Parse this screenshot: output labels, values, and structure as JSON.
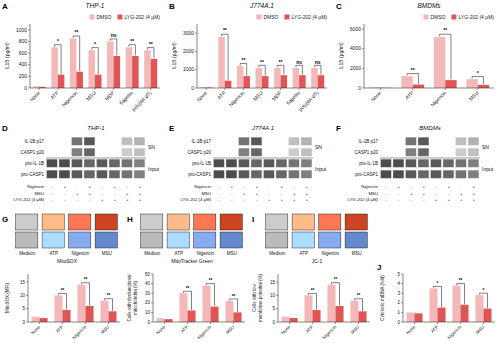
{
  "chart_data": [
    {
      "type": "bar",
      "panel_label": "A",
      "title": "THP-1",
      "ylabel": "IL1B (pg/ml)",
      "categories": [
        "None",
        "ATP",
        "Nigericin",
        "MSU",
        "MDP",
        "flagellin",
        "poly(dA:dT)"
      ],
      "series": [
        {
          "name": "DMSO",
          "color": "#f4b8b8",
          "values": [
            30,
            700,
            850,
            650,
            800,
            700,
            650
          ]
        },
        {
          "name": "LYG-202 (4 μM)",
          "color": "#e05555",
          "values": [
            20,
            230,
            280,
            230,
            550,
            550,
            500
          ]
        }
      ],
      "stars": [
        null,
        "*",
        "**",
        "*",
        "ns",
        "**",
        "**"
      ],
      "ylim": [
        0,
        1100
      ],
      "yticks": [
        0,
        200,
        400,
        600,
        800,
        1000
      ],
      "legend": "upper right"
    },
    {
      "type": "bar",
      "panel_label": "B",
      "title": "J774A.1",
      "ylabel": "IL1B (pg/ml)",
      "categories": [
        "None",
        "ATP",
        "Nigericin",
        "MSU",
        "MDP",
        "flagellin",
        "poly(dA:dT)"
      ],
      "series": [
        {
          "name": "DMSO",
          "color": "#f4b8b8",
          "values": [
            50,
            2800,
            1200,
            1100,
            1100,
            1100,
            1100
          ]
        },
        {
          "name": "LYG-202 (4 μM)",
          "color": "#e05555",
          "values": [
            30,
            400,
            650,
            650,
            700,
            700,
            700
          ]
        }
      ],
      "stars": [
        null,
        "**",
        "**",
        "**",
        "**",
        "ns",
        "ns"
      ],
      "ylim": [
        0,
        3500
      ],
      "yticks": [
        0,
        1000,
        2000,
        3000
      ],
      "legend": "upper right"
    },
    {
      "type": "bar",
      "panel_label": "C",
      "title": "BMDMs",
      "ylabel": "IL1B (pg/ml)",
      "categories": [
        "None",
        "ATP",
        "Nigericin",
        "MSU"
      ],
      "series": [
        {
          "name": "DMSO",
          "color": "#f4b8b8",
          "values": [
            80,
            1200,
            5200,
            900
          ]
        },
        {
          "name": "LYG-202 (4 μM)",
          "color": "#e05555",
          "values": [
            30,
            350,
            800,
            320
          ]
        }
      ],
      "stars": [
        null,
        "**",
        "**",
        "*"
      ],
      "ylim": [
        0,
        6500
      ],
      "yticks": [
        0,
        2000,
        4000,
        6000
      ],
      "legend": "upper right"
    },
    {
      "type": "blot",
      "panel_label": "D",
      "title": "THP-1",
      "rows": [
        "IL-1B p17",
        "CASP1 p20",
        "pro-IL-1B",
        "pro-CASP1"
      ],
      "cells": [
        [
          0.0,
          0.0,
          0.55,
          0.65,
          0.0,
          0.0,
          0.25,
          0.3
        ],
        [
          0.0,
          0.0,
          0.5,
          0.6,
          0.0,
          0.0,
          0.2,
          0.25
        ],
        [
          0.7,
          0.7,
          0.65,
          0.6,
          0.65,
          0.6,
          0.55,
          0.5
        ],
        [
          0.7,
          0.7,
          0.65,
          0.6,
          0.65,
          0.6,
          0.55,
          0.5
        ]
      ],
      "groups": [
        {
          "name": "SN",
          "rows": 2
        },
        {
          "name": "Input",
          "rows": 2
        }
      ],
      "lane_labels": [
        {
          "name": "Nigericin",
          "values": [
            "-",
            "+",
            "-",
            "+",
            "-",
            "+",
            "-",
            "+"
          ]
        },
        {
          "name": "MSU",
          "values": [
            "-",
            "-",
            "+",
            "+",
            "-",
            "-",
            "+",
            "+"
          ]
        },
        {
          "name": "LYG-202 (4 μM)",
          "values": [
            "-",
            "-",
            "-",
            "-",
            "+",
            "+",
            "+",
            "+"
          ]
        }
      ]
    },
    {
      "type": "blot",
      "panel_label": "E",
      "title": "J774A.1",
      "rows": [
        "IL-1B p17",
        "CASP1 p20",
        "pro-IL-1B",
        "pro-CASP1"
      ],
      "cells": [
        [
          0.0,
          0.0,
          0.55,
          0.65,
          0.0,
          0.0,
          0.25,
          0.3
        ],
        [
          0.0,
          0.0,
          0.5,
          0.6,
          0.0,
          0.0,
          0.2,
          0.25
        ],
        [
          0.7,
          0.7,
          0.65,
          0.6,
          0.65,
          0.6,
          0.55,
          0.5
        ],
        [
          0.7,
          0.7,
          0.65,
          0.6,
          0.65,
          0.6,
          0.55,
          0.5
        ]
      ],
      "groups": [
        {
          "name": "SN",
          "rows": 2
        },
        {
          "name": "Input",
          "rows": 2
        }
      ],
      "lane_labels": [
        {
          "name": "Nigericin",
          "values": [
            "-",
            "+",
            "-",
            "+",
            "-",
            "+",
            "-",
            "+"
          ]
        },
        {
          "name": "MSU",
          "values": [
            "-",
            "-",
            "+",
            "+",
            "-",
            "-",
            "+",
            "+"
          ]
        },
        {
          "name": "LYG-202 (4 μM)",
          "values": [
            "-",
            "-",
            "-",
            "-",
            "+",
            "+",
            "+",
            "+"
          ]
        }
      ]
    },
    {
      "type": "blot",
      "panel_label": "F",
      "title": "BMDMs",
      "rows": [
        "IL-1B p17",
        "CASP1 p20",
        "pro-IL-1B",
        "pro-CASP1"
      ],
      "cells": [
        [
          0.0,
          0.0,
          0.55,
          0.65,
          0.0,
          0.0,
          0.25,
          0.3
        ],
        [
          0.0,
          0.0,
          0.5,
          0.6,
          0.0,
          0.0,
          0.2,
          0.25
        ],
        [
          0.7,
          0.7,
          0.65,
          0.6,
          0.65,
          0.6,
          0.55,
          0.5
        ],
        [
          0.7,
          0.7,
          0.65,
          0.6,
          0.65,
          0.6,
          0.55,
          0.5
        ]
      ],
      "groups": [
        {
          "name": "SN",
          "rows": 2
        },
        {
          "name": "Input",
          "rows": 2
        }
      ],
      "lane_labels": [
        {
          "name": "Nigericin",
          "values": [
            "-",
            "+",
            "-",
            "+",
            "-",
            "+",
            "-",
            "+"
          ]
        },
        {
          "name": "MSU",
          "values": [
            "-",
            "-",
            "+",
            "+",
            "-",
            "-",
            "+",
            "+"
          ]
        },
        {
          "name": "LYG-202 (4 μM)",
          "values": [
            "-",
            "-",
            "-",
            "-",
            "+",
            "+",
            "+",
            "+"
          ]
        }
      ]
    },
    {
      "type": "flow",
      "panel_label": "G",
      "categories": [
        "Medium",
        "ATP",
        "Nigericin",
        "MSU"
      ],
      "series": [
        {
          "colors": [
            "#cccccc",
            "#ffbb88",
            "#ff7755",
            "#cc4422"
          ]
        },
        {
          "colors": [
            "#bbbbbb",
            "#aaddff",
            "#88aaee",
            "#6688cc"
          ]
        }
      ],
      "xlabel": "MitoSOX"
    },
    {
      "type": "bar",
      "ylabel": "MitoSOX (MFI)",
      "categories": [
        "None",
        "ATP",
        "Nigericin",
        "MSU"
      ],
      "series": [
        {
          "color": "#f4b8b8",
          "values": [
            2.0,
            10.0,
            14.0,
            8.0
          ]
        },
        {
          "color": "#e05555",
          "values": [
            1.5,
            4.5,
            6.0,
            4.0
          ]
        }
      ],
      "stars": [
        null,
        "**",
        "**",
        "**"
      ],
      "ylim": [
        0,
        18
      ],
      "yticks": [
        0,
        5,
        10,
        15
      ]
    },
    {
      "type": "flow",
      "panel_label": "H",
      "categories": [
        "Medium",
        "ATP",
        "Nigericin",
        "MSU"
      ],
      "series": [
        {
          "colors": [
            "#cccccc",
            "#ffbb88",
            "#ff7755",
            "#cc4422"
          ]
        },
        {
          "colors": [
            "#bbbbbb",
            "#aaddff",
            "#88aaee",
            "#6688cc"
          ]
        }
      ],
      "xlabel": "MitoTracker Green"
    },
    {
      "type": "bar",
      "ylabel": "Cells with dysfunctional\nmitochondria (%)",
      "categories": [
        "None",
        "ATP",
        "Nigericin",
        "MSU"
      ],
      "series": [
        {
          "color": "#f4b8b8",
          "values": [
            4.0,
            30.0,
            38.0,
            22.0
          ]
        },
        {
          "color": "#e05555",
          "values": [
            3.0,
            12.0,
            16.0,
            10.0
          ]
        }
      ],
      "stars": [
        null,
        "**",
        "**",
        "**"
      ],
      "ylim": [
        0,
        50
      ],
      "yticks": [
        0,
        10,
        20,
        30,
        40,
        50
      ]
    },
    {
      "type": "flow",
      "panel_label": "I",
      "categories": [
        "Medium",
        "ATP",
        "Nigericin",
        "MSU"
      ],
      "series": [
        {
          "colors": [
            "#cccccc",
            "#ffbb88",
            "#ff7755",
            "#cc4422"
          ]
        },
        {
          "colors": [
            "#bbbbbb",
            "#aaddff",
            "#88aaee",
            "#6688cc"
          ]
        }
      ],
      "xlabel": "JC-1"
    },
    {
      "type": "bar",
      "ylabel": "Cells with low\nmembrane potential (%)",
      "categories": [
        "None",
        "ATP",
        "Nigericin",
        "MSU"
      ],
      "series": [
        {
          "color": "#f4b8b8",
          "values": [
            2.0,
            10.0,
            14.0,
            8.0
          ]
        },
        {
          "color": "#e05555",
          "values": [
            1.5,
            4.5,
            6.0,
            4.0
          ]
        }
      ],
      "stars": [
        null,
        "**",
        "**",
        "**"
      ],
      "ylim": [
        0,
        18
      ],
      "yticks": [
        0,
        5,
        10,
        15
      ]
    },
    {
      "type": "bar",
      "panel_label": "J",
      "ylabel": "Cytosolic mtDNA (fold)",
      "categories": [
        "None",
        "ATP",
        "Nigericin",
        "MSU"
      ],
      "series": [
        {
          "color": "#f4b8b8",
          "values": [
            1.0,
            3.5,
            3.8,
            2.8
          ]
        },
        {
          "color": "#e05555",
          "values": [
            0.9,
            1.5,
            1.8,
            1.4
          ]
        }
      ],
      "stars": [
        null,
        "*",
        "**",
        "*"
      ],
      "ylim": [
        0,
        5
      ],
      "yticks": [
        0,
        1,
        2,
        3,
        4,
        5
      ]
    }
  ]
}
